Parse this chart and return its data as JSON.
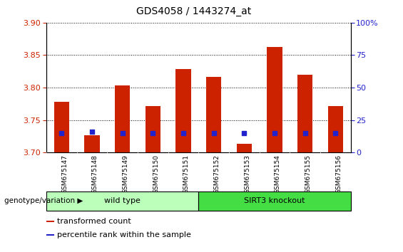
{
  "title": "GDS4058 / 1443274_at",
  "samples": [
    "GSM675147",
    "GSM675148",
    "GSM675149",
    "GSM675150",
    "GSM675151",
    "GSM675152",
    "GSM675153",
    "GSM675154",
    "GSM675155",
    "GSM675156"
  ],
  "transformed_count": [
    3.778,
    3.727,
    3.803,
    3.772,
    3.828,
    3.816,
    3.713,
    3.862,
    3.82,
    3.772
  ],
  "percentile_rank": [
    15,
    16,
    15,
    15,
    15,
    15,
    15,
    15,
    15,
    15
  ],
  "ylim_left": [
    3.7,
    3.9
  ],
  "ylim_right": [
    0,
    100
  ],
  "yticks_left": [
    3.7,
    3.75,
    3.8,
    3.85,
    3.9
  ],
  "yticks_right": [
    0,
    25,
    50,
    75,
    100
  ],
  "bar_color": "#cc2200",
  "dot_color": "#2222cc",
  "bar_bottom": 3.7,
  "wild_type_indices": [
    0,
    1,
    2,
    3,
    4
  ],
  "knockout_indices": [
    5,
    6,
    7,
    8,
    9
  ],
  "group_label_wt": "wild type",
  "group_label_ko": "SIRT3 knockout",
  "group_color_wt": "#bbffbb",
  "group_color_ko": "#44dd44",
  "xlabel_text": "genotype/variation",
  "legend_items": [
    "transformed count",
    "percentile rank within the sample"
  ],
  "legend_colors": [
    "#cc2200",
    "#2222cc"
  ],
  "tick_color_left": "#cc2200",
  "tick_color_right": "#2222cc",
  "grid_color": "#000000",
  "bg_color": "#ffffff",
  "bar_width": 0.5,
  "xticklabel_bg": "#d8d8d8"
}
